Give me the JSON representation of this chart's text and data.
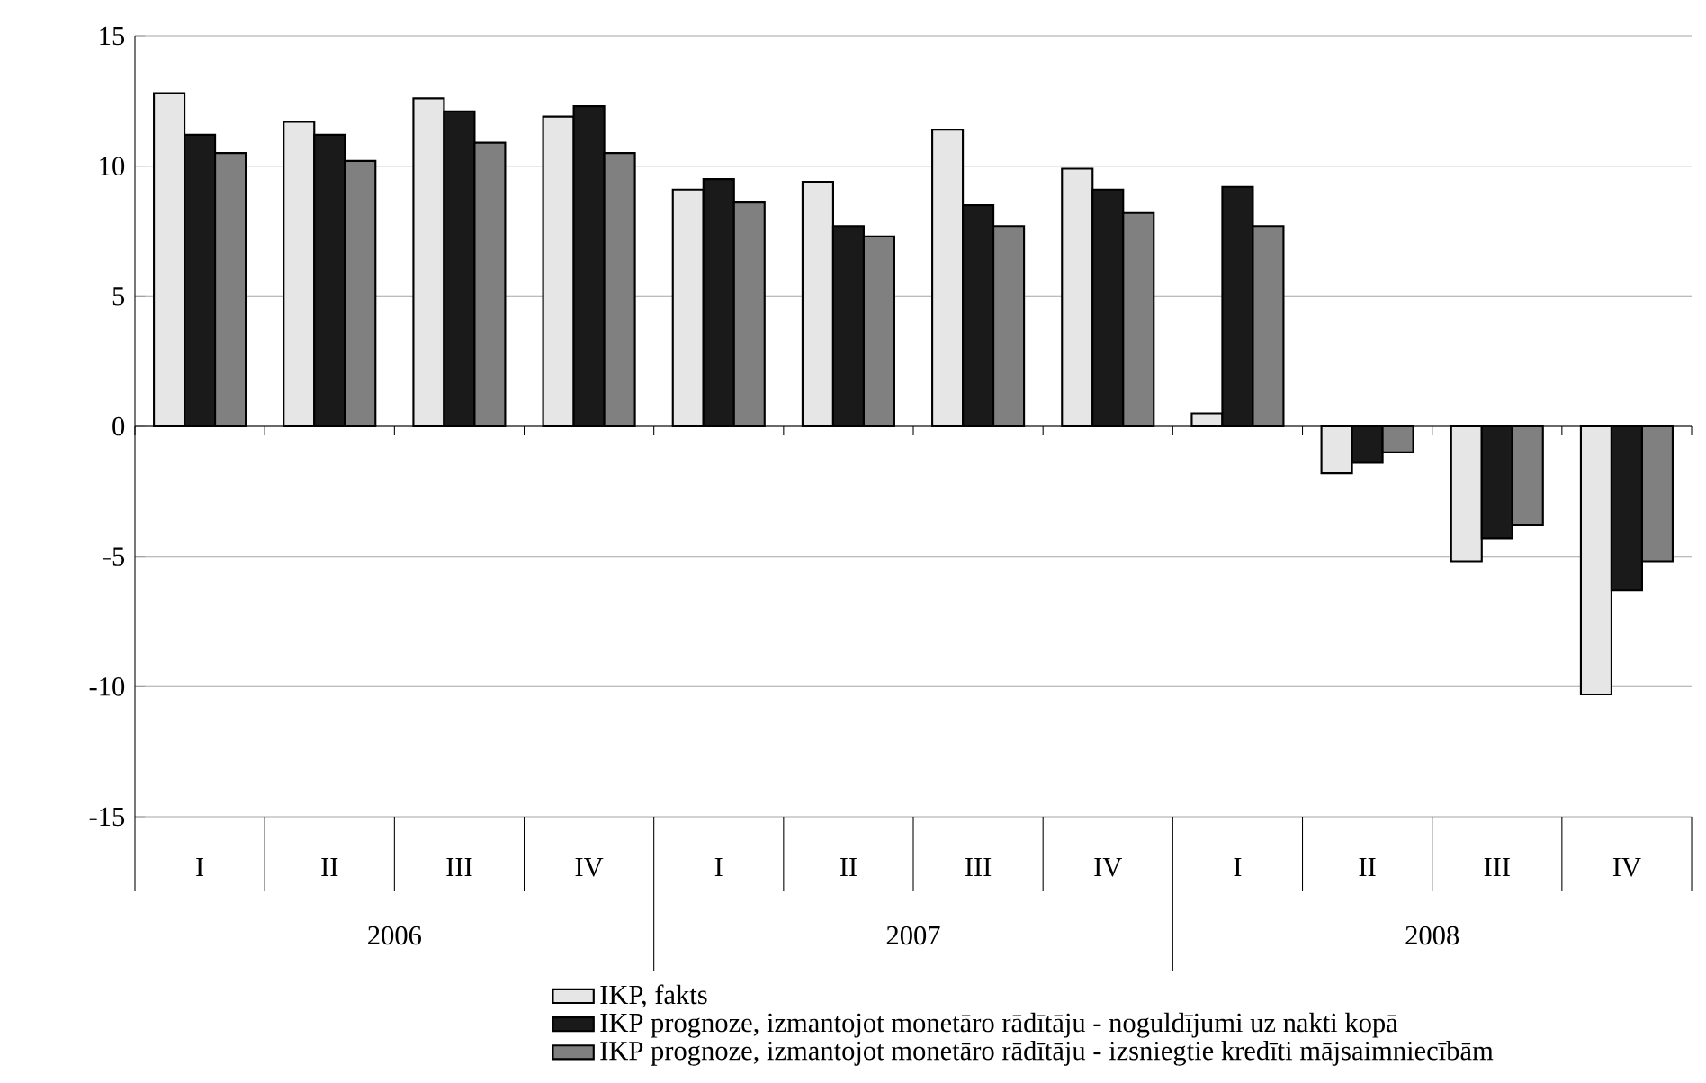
{
  "chart_data": {
    "type": "bar",
    "categories": [
      "I",
      "II",
      "III",
      "IV",
      "I",
      "II",
      "III",
      "IV",
      "I",
      "II",
      "III",
      "IV"
    ],
    "series": [
      {
        "name": "IKP, fakts",
        "color": "#e6e6e6",
        "values": [
          12.8,
          11.7,
          12.6,
          11.9,
          9.1,
          9.4,
          11.4,
          9.9,
          0.5,
          -1.8,
          -5.2,
          -10.3
        ]
      },
      {
        "name": "IKP prognoze, izmantojot monetāro rādītāju - noguldījumi uz nakti kopā",
        "color": "#1a1a1a",
        "values": [
          11.2,
          11.2,
          12.1,
          12.3,
          9.5,
          7.7,
          8.5,
          9.1,
          9.2,
          -1.4,
          -4.3,
          -6.3
        ]
      },
      {
        "name": "IKP prognoze, izmantojot monetāro rādītāju - izsniegtie kredīti mājsaimniecībām",
        "color": "#808080",
        "values": [
          10.5,
          10.2,
          10.9,
          10.5,
          8.6,
          7.3,
          7.7,
          8.2,
          7.7,
          -1.0,
          -3.8,
          -5.2
        ]
      }
    ],
    "annotations": [
      "2006",
      "2007",
      "2008"
    ],
    "ylim": [
      -15,
      15
    ],
    "yticks": [
      -15,
      -10,
      -5,
      0,
      5,
      10,
      15
    ],
    "grid": "y",
    "legend": "bottom"
  }
}
